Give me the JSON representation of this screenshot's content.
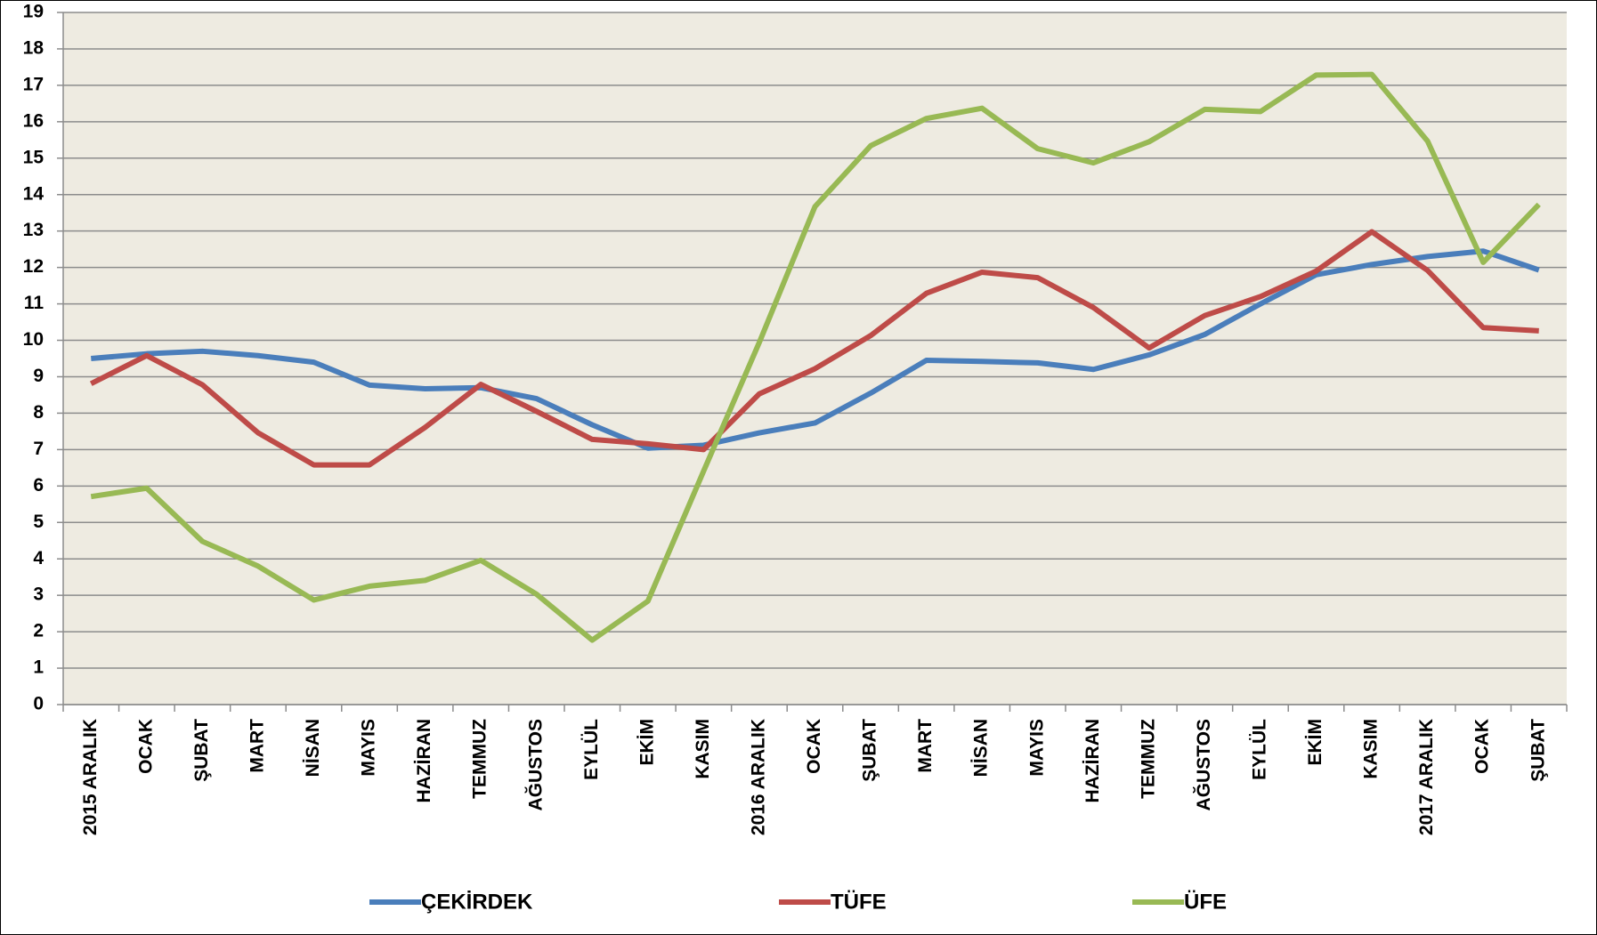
{
  "chart_data": {
    "type": "line",
    "categories": [
      "2015 ARALIK",
      "OCAK",
      "ŞUBAT",
      "MART",
      "NİSAN",
      "MAYIS",
      "HAZİRAN",
      "TEMMUZ",
      "AĞUSTOS",
      "EYLÜL",
      "EKİM",
      "KASIM",
      "2016 ARALIK",
      "OCAK",
      "ŞUBAT",
      "MART",
      "NİSAN",
      "MAYIS",
      "HAZİRAN",
      "TEMMUZ",
      "AĞUSTOS",
      "EYLÜL",
      "EKİM",
      "KASIM",
      "2017 ARALIK",
      "OCAK",
      "ŞUBAT"
    ],
    "series": [
      {
        "name": "ÇEKİRDEK",
        "color": "#4a7ebb",
        "values": [
          9.5,
          9.63,
          9.7,
          9.58,
          9.4,
          8.77,
          8.67,
          8.7,
          8.4,
          7.68,
          7.04,
          7.12,
          7.46,
          7.73,
          8.55,
          9.45,
          9.42,
          9.38,
          9.2,
          9.6,
          10.16,
          11.0,
          11.8,
          12.08,
          12.3,
          12.45,
          11.93
        ]
      },
      {
        "name": "TÜFE",
        "color": "#be4b48",
        "values": [
          8.81,
          9.58,
          8.78,
          7.46,
          6.58,
          6.58,
          7.61,
          8.79,
          8.05,
          7.28,
          7.16,
          7.0,
          8.53,
          9.22,
          10.13,
          11.29,
          11.87,
          11.72,
          10.9,
          9.79,
          10.68,
          11.2,
          11.9,
          12.98,
          11.92,
          10.35,
          10.26
        ]
      },
      {
        "name": "ÜFE",
        "color": "#98b954",
        "values": [
          5.71,
          5.94,
          4.48,
          3.8,
          2.87,
          3.25,
          3.41,
          3.96,
          3.03,
          1.77,
          2.84,
          6.41,
          9.94,
          13.67,
          15.34,
          16.09,
          16.37,
          15.26,
          14.87,
          15.45,
          16.34,
          16.28,
          17.28,
          17.3,
          15.47,
          12.14,
          13.73
        ]
      }
    ],
    "ylim": [
      0,
      19
    ],
    "yticks": [
      0,
      1,
      2,
      3,
      4,
      5,
      6,
      7,
      8,
      9,
      10,
      11,
      12,
      13,
      14,
      15,
      16,
      17,
      18,
      19
    ],
    "grid": true,
    "legend": "bottom"
  }
}
